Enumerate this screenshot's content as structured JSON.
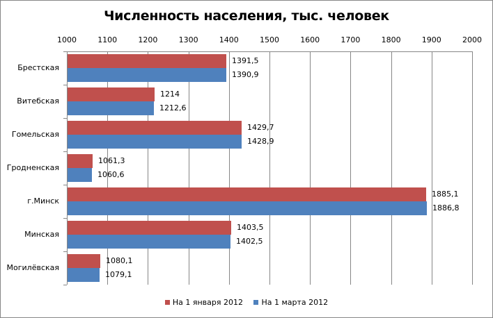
{
  "chart_data": {
    "type": "bar",
    "orientation": "horizontal",
    "title": "Численность населения, тыс. человек",
    "xlabel": "",
    "ylabel": "",
    "xlim": [
      1000,
      2000
    ],
    "x_ticks": [
      "1000",
      "1100",
      "1200",
      "1300",
      "1400",
      "1500",
      "1600",
      "1700",
      "1800",
      "1900",
      "2000"
    ],
    "grid": true,
    "legend_position": "bottom",
    "categories": [
      "Брестская",
      "Витебская",
      "Гомельская",
      "Гродненская",
      "г.Минск",
      "Минская",
      "Могилёвская"
    ],
    "series": [
      {
        "name": "На 1 января 2012",
        "color": "#C0504D",
        "values": [
          1391.5,
          1214,
          1429.7,
          1061.3,
          1885.1,
          1403.5,
          1080.1
        ],
        "labels": [
          "1391,5",
          "1214",
          "1429,7",
          "1061,3",
          "1885,1",
          "1403,5",
          "1080,1"
        ]
      },
      {
        "name": "На 1 марта 2012",
        "color": "#4F81BD",
        "values": [
          1390.9,
          1212.6,
          1428.9,
          1060.6,
          1886.8,
          1402.5,
          1079.1
        ],
        "labels": [
          "1390,9",
          "1212,6",
          "1428,9",
          "1060,6",
          "1886,8",
          "1402,5",
          "1079,1"
        ]
      }
    ]
  }
}
